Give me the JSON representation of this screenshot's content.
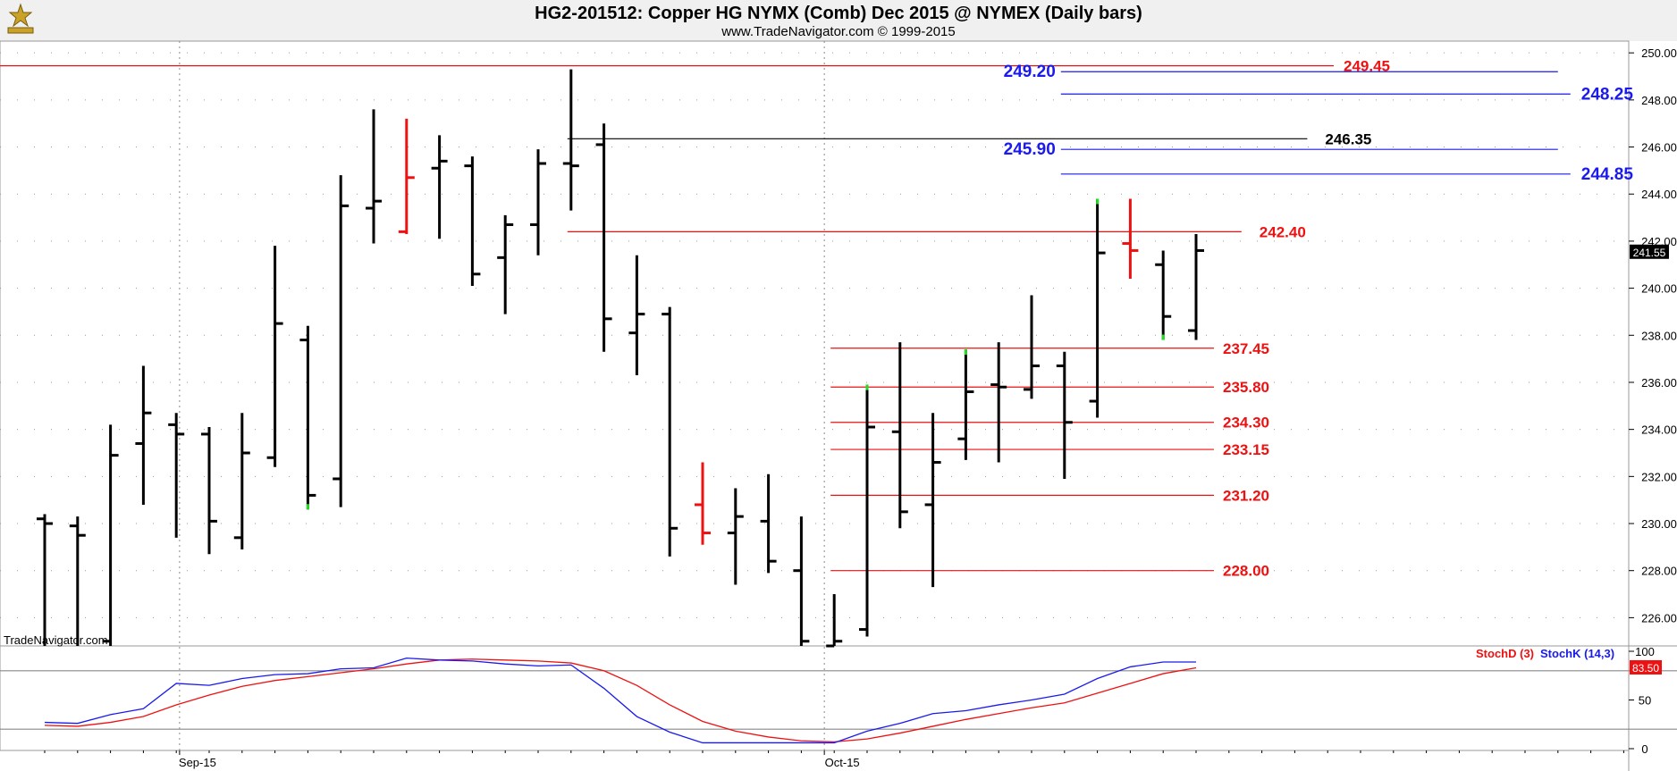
{
  "header": {
    "title": "HG2-201512:  Copper HG NYMX (Comb) Dec 2015 @ NYMEX  (Daily bars)",
    "subtitle": "www.TradeNavigator.com © 1999-2015",
    "watermark": "TradeNavigator.com"
  },
  "colors": {
    "bar": "#000000",
    "bar_down_highlight": "#ee1111",
    "bar_up_highlight": "#22dd22",
    "resistance_line": "#ee1111",
    "target_line": "#1a1aee",
    "level_black": "#000000",
    "stoch_d": "#ee1111",
    "stoch_k": "#1a1aee",
    "header_bg": "#f0f0f0"
  },
  "chart_data": [
    {
      "type": "ohlc",
      "title": "Copper HG NYMX (Comb) Dec 2015 @ NYMEX (Daily bars)",
      "x_tick_labels": [
        "Sep-15",
        "Oct-15"
      ],
      "y_ticks": [
        "226.00",
        "228.00",
        "230.00",
        "232.00",
        "234.00",
        "236.00",
        "238.00",
        "240.00",
        "242.00",
        "244.00",
        "246.00",
        "248.00",
        "250.00"
      ],
      "ylim": [
        224.8,
        250.5
      ],
      "last_price": "241.55",
      "bars": [
        {
          "o": 230.2,
          "h": 230.4,
          "l": 224.8,
          "c": 230.0,
          "color": "black"
        },
        {
          "o": 229.9,
          "h": 230.3,
          "l": 224.8,
          "c": 229.5,
          "color": "black"
        },
        {
          "o": 225.0,
          "h": 234.2,
          "l": 224.8,
          "c": 232.9,
          "color": "black"
        },
        {
          "o": 233.4,
          "h": 236.7,
          "l": 230.8,
          "c": 234.7,
          "color": "black"
        },
        {
          "o": 234.2,
          "h": 234.7,
          "l": 229.4,
          "c": 233.8,
          "color": "black"
        },
        {
          "o": 233.8,
          "h": 234.1,
          "l": 228.7,
          "c": 230.1,
          "color": "black"
        },
        {
          "o": 229.4,
          "h": 234.7,
          "l": 228.9,
          "c": 233.0,
          "color": "black"
        },
        {
          "o": 232.8,
          "h": 241.8,
          "l": 232.4,
          "c": 238.5,
          "color": "black"
        },
        {
          "o": 237.8,
          "h": 238.4,
          "l": 230.6,
          "c": 231.2,
          "color": "black",
          "highlight": "up"
        },
        {
          "o": 231.9,
          "h": 244.8,
          "l": 230.7,
          "c": 243.5,
          "color": "black"
        },
        {
          "o": 243.4,
          "h": 247.6,
          "l": 241.9,
          "c": 243.7,
          "color": "black"
        },
        {
          "o": 242.4,
          "h": 247.2,
          "l": 242.3,
          "c": 244.7,
          "color": "red"
        },
        {
          "o": 245.1,
          "h": 246.5,
          "l": 242.1,
          "c": 245.4,
          "color": "black"
        },
        {
          "o": 245.2,
          "h": 245.6,
          "l": 240.1,
          "c": 240.6,
          "color": "black"
        },
        {
          "o": 241.3,
          "h": 243.1,
          "l": 238.9,
          "c": 242.7,
          "color": "black"
        },
        {
          "o": 242.7,
          "h": 245.9,
          "l": 241.4,
          "c": 245.3,
          "color": "black"
        },
        {
          "o": 245.3,
          "h": 249.3,
          "l": 243.3,
          "c": 245.2,
          "color": "black"
        },
        {
          "o": 246.1,
          "h": 247.0,
          "l": 237.3,
          "c": 238.7,
          "color": "black"
        },
        {
          "o": 238.1,
          "h": 241.4,
          "l": 236.3,
          "c": 238.9,
          "color": "black"
        },
        {
          "o": 238.9,
          "h": 239.2,
          "l": 228.6,
          "c": 229.8,
          "color": "black"
        },
        {
          "o": 230.8,
          "h": 232.6,
          "l": 229.1,
          "c": 229.6,
          "color": "red"
        },
        {
          "o": 229.6,
          "h": 231.5,
          "l": 227.4,
          "c": 230.3,
          "color": "black"
        },
        {
          "o": 230.1,
          "h": 232.1,
          "l": 227.9,
          "c": 228.4,
          "color": "black"
        },
        {
          "o": 228.0,
          "h": 230.3,
          "l": 224.8,
          "c": 225.0,
          "color": "black"
        },
        {
          "o": 224.8,
          "h": 227.0,
          "l": 224.8,
          "c": 225.0,
          "color": "black"
        },
        {
          "o": 225.5,
          "h": 235.9,
          "l": 225.2,
          "c": 234.1,
          "color": "black",
          "highlight": "up"
        },
        {
          "o": 233.9,
          "h": 237.7,
          "l": 229.8,
          "c": 230.5,
          "color": "black"
        },
        {
          "o": 230.8,
          "h": 234.7,
          "l": 227.3,
          "c": 232.6,
          "color": "black"
        },
        {
          "o": 233.6,
          "h": 237.4,
          "l": 232.7,
          "c": 235.6,
          "color": "black",
          "highlight": "up"
        },
        {
          "o": 235.9,
          "h": 237.7,
          "l": 232.6,
          "c": 235.8,
          "color": "black"
        },
        {
          "o": 235.7,
          "h": 239.7,
          "l": 235.3,
          "c": 236.7,
          "color": "black"
        },
        {
          "o": 236.7,
          "h": 237.3,
          "l": 231.9,
          "c": 234.3,
          "color": "black"
        },
        {
          "o": 235.2,
          "h": 243.8,
          "l": 234.5,
          "c": 241.5,
          "color": "black",
          "highlight": "up"
        },
        {
          "o": 241.9,
          "h": 243.8,
          "l": 240.4,
          "c": 241.6,
          "color": "red"
        },
        {
          "o": 241.0,
          "h": 241.6,
          "l": 237.8,
          "c": 238.8,
          "color": "black",
          "highlight": "up"
        },
        {
          "o": 238.2,
          "h": 242.3,
          "l": 237.8,
          "c": 241.6,
          "color": "black"
        }
      ],
      "levels": [
        {
          "value": 249.45,
          "label": "249.45",
          "color": "red",
          "from_bar": -1,
          "to_bar": 36
        },
        {
          "value": 249.2,
          "label": "249.20",
          "color": "blue",
          "from_bar": 31,
          "to_bar": 46,
          "label_side": "left"
        },
        {
          "value": 248.25,
          "label": "248.25",
          "color": "blue",
          "from_bar": 31,
          "to_bar": 46
        },
        {
          "value": 246.35,
          "label": "246.35",
          "color": "black",
          "from_bar": 16,
          "to_bar": 38
        },
        {
          "value": 245.9,
          "label": "245.90",
          "color": "blue",
          "from_bar": 31,
          "to_bar": 46,
          "label_side": "left"
        },
        {
          "value": 244.85,
          "label": "244.85",
          "color": "blue",
          "from_bar": 31,
          "to_bar": 46
        },
        {
          "value": 242.4,
          "label": "242.40",
          "color": "red",
          "from_bar": 16,
          "to_bar": 36
        },
        {
          "value": 237.45,
          "label": "237.45",
          "color": "red",
          "from_bar": 24,
          "to_bar": 35
        },
        {
          "value": 235.8,
          "label": "235.80",
          "color": "red",
          "from_bar": 24,
          "to_bar": 35
        },
        {
          "value": 234.3,
          "label": "234.30",
          "color": "red",
          "from_bar": 24,
          "to_bar": 35
        },
        {
          "value": 233.15,
          "label": "233.15",
          "color": "red",
          "from_bar": 24,
          "to_bar": 35
        },
        {
          "value": 231.2,
          "label": "231.20",
          "color": "red",
          "from_bar": 24,
          "to_bar": 35
        },
        {
          "value": 228.0,
          "label": "228.00",
          "color": "red",
          "from_bar": 24,
          "to_bar": 35
        }
      ]
    },
    {
      "type": "line",
      "series": [
        {
          "name": "StochD (3)",
          "values": [
            24,
            23,
            27,
            33,
            45,
            55,
            64,
            70,
            74,
            78,
            82,
            87,
            91,
            92,
            91,
            90,
            88,
            80,
            65,
            45,
            28,
            18,
            12,
            8,
            7,
            10,
            16,
            23,
            30,
            36,
            42,
            47,
            57,
            67,
            77,
            83
          ]
        },
        {
          "name": "StochK (14,3)",
          "values": [
            27,
            26,
            35,
            41,
            67,
            65,
            72,
            76,
            77,
            82,
            83,
            93,
            91,
            90,
            87,
            85,
            86,
            62,
            33,
            17,
            6,
            6,
            6,
            6,
            6,
            18,
            26,
            36,
            39,
            45,
            50,
            56,
            72,
            84,
            89,
            89
          ]
        }
      ],
      "y_ticks": [
        "0",
        "50",
        "100"
      ],
      "reference_lines": [
        20,
        80
      ],
      "ylim": [
        0,
        100
      ],
      "last_value": "83.50"
    }
  ]
}
